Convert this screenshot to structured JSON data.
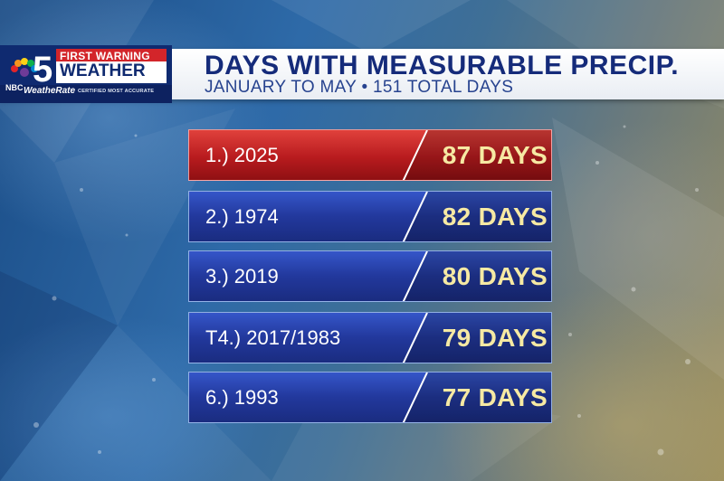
{
  "branding": {
    "network": "NBC",
    "channel": "5",
    "first_warning": "FIRST WARNING",
    "weather": "WEATHER",
    "weatherate": "WeatheRate",
    "certified": "CERTIFIED MOST ACCURATE"
  },
  "header": {
    "title": "DAYS WITH MEASURABLE PRECIP.",
    "subtitle": "JANUARY TO MAY • 151 TOTAL DAYS"
  },
  "colors": {
    "title": "#152b7a",
    "highlight_row": "#c0201f",
    "standard_row": "#22389c",
    "days_text": "#f6e9a3"
  },
  "rankings": [
    {
      "rank_label": "1.) 2025",
      "days_label": "87 DAYS",
      "days": 87,
      "highlight": true
    },
    {
      "rank_label": "2.) 1974",
      "days_label": "82 DAYS",
      "days": 82,
      "highlight": false
    },
    {
      "rank_label": "3.) 2019",
      "days_label": "80 DAYS",
      "days": 80,
      "highlight": false
    },
    {
      "rank_label": "T4.) 2017/1983",
      "days_label": "79 DAYS",
      "days": 79,
      "highlight": false
    },
    {
      "rank_label": "6.) 1993",
      "days_label": "77 DAYS",
      "days": 77,
      "highlight": false
    }
  ]
}
